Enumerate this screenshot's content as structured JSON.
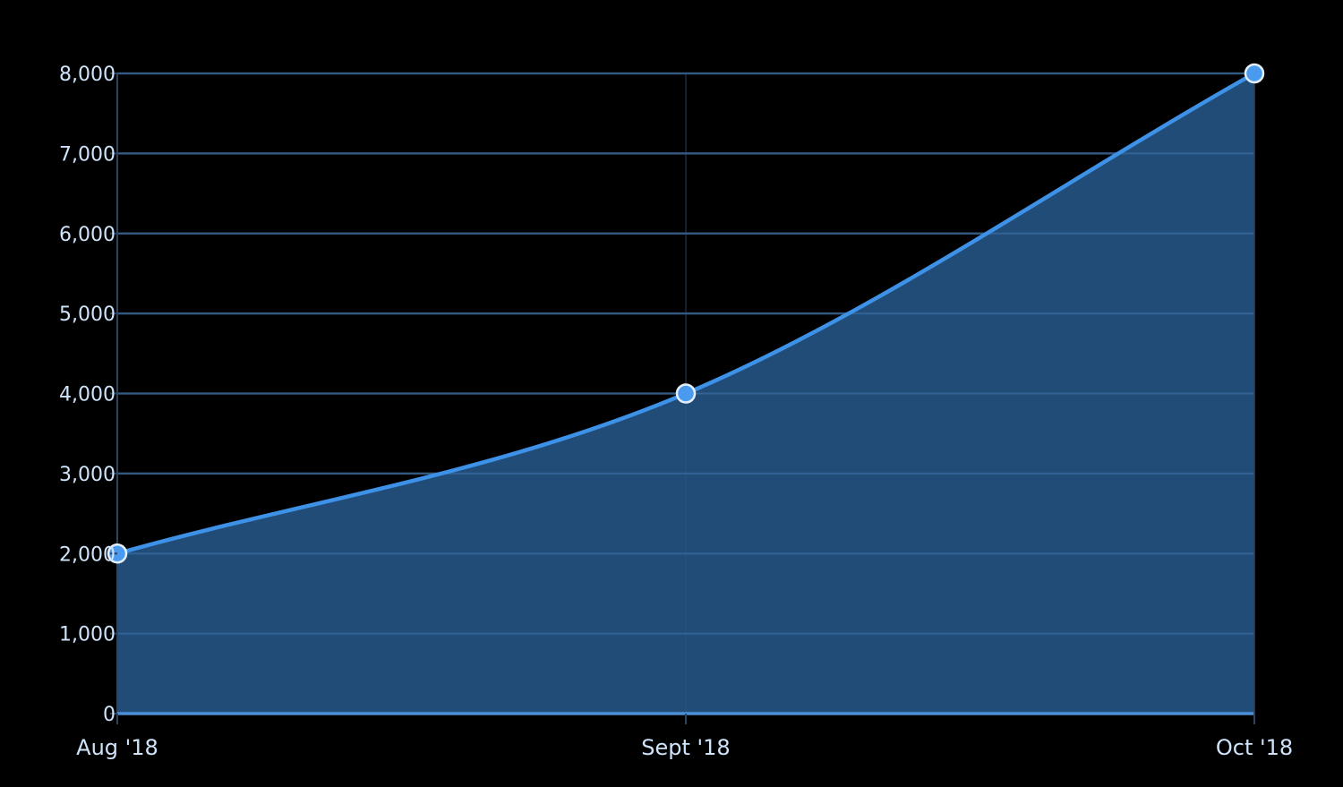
{
  "colors": {
    "background": "#000000",
    "gridline": "#2c4460",
    "vertical_gridline": "#1d2b3d",
    "axis": "#2c4460",
    "area_fill": "#265788",
    "line": "#3d92e8",
    "marker_fill": "#4a9af0",
    "marker_stroke": "#e4effb",
    "tick_text": "#cfe3fa",
    "baseline": "#4a8fd6"
  },
  "chart_data": {
    "type": "area",
    "title": "",
    "xlabel": "",
    "ylabel": "",
    "categories": [
      "Aug '18",
      "Sept '18",
      "Oct '18"
    ],
    "series": [
      {
        "values": [
          2000,
          4000,
          8000
        ]
      }
    ],
    "ylim": [
      0,
      8000
    ],
    "yticks": [
      0,
      1000,
      2000,
      3000,
      4000,
      5000,
      6000,
      7000,
      8000
    ],
    "ytick_labels": [
      "0",
      "1,000",
      "2,000",
      "3,000",
      "4,000",
      "5,000",
      "6,000",
      "7,000",
      "8,000"
    ],
    "grid": true,
    "legend": "none",
    "curve": "smooth"
  }
}
